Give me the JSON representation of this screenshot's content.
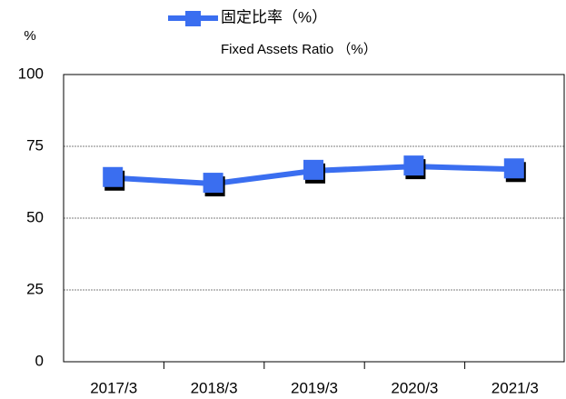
{
  "chart_data": {
    "type": "line",
    "ylabel": "%",
    "subtitle": "Fixed Assets Ratio （%）",
    "categories": [
      "2017/3",
      "2018/3",
      "2019/3",
      "2020/3",
      "2021/3"
    ],
    "series": [
      {
        "name": "固定比率（%）",
        "color": "#3a6ef0",
        "values": [
          64,
          62,
          66.5,
          68,
          67
        ]
      }
    ],
    "ylim": [
      0,
      100
    ],
    "yticks": [
      0,
      25,
      50,
      75,
      100
    ],
    "grid": true
  }
}
